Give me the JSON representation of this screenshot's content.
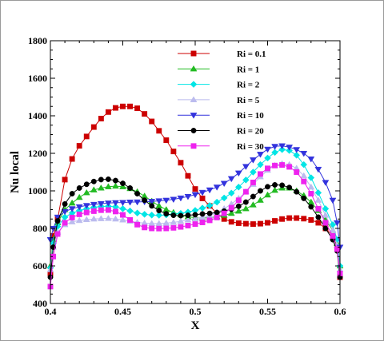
{
  "chart_data": {
    "type": "line",
    "title": "",
    "xlabel": "X",
    "ylabel": "Nu local",
    "xlim": [
      0.4,
      0.6
    ],
    "ylim": [
      400,
      1800
    ],
    "x_ticks": [
      0.4,
      0.45,
      0.5,
      0.55,
      0.6
    ],
    "x_tick_labels": [
      "0.4",
      "0.45",
      "0.5",
      "0.55",
      "0.6"
    ],
    "y_ticks": [
      400,
      600,
      800,
      1000,
      1200,
      1400,
      1600,
      1800
    ],
    "y_tick_labels": [
      "400",
      "600",
      "800",
      "1000",
      "1200",
      "1400",
      "1600",
      "1800"
    ],
    "grid": false,
    "legend_position": "top-right",
    "series": [
      {
        "name": "Ri = 0.1",
        "color": "#cc0000",
        "marker": "square",
        "points": [
          [
            0.4,
            560
          ],
          [
            0.402,
            760
          ],
          [
            0.405,
            850
          ],
          [
            0.41,
            1060
          ],
          [
            0.415,
            1170
          ],
          [
            0.42,
            1240
          ],
          [
            0.425,
            1290
          ],
          [
            0.43,
            1340
          ],
          [
            0.435,
            1385
          ],
          [
            0.44,
            1420
          ],
          [
            0.445,
            1442
          ],
          [
            0.45,
            1450
          ],
          [
            0.455,
            1450
          ],
          [
            0.46,
            1440
          ],
          [
            0.465,
            1410
          ],
          [
            0.47,
            1370
          ],
          [
            0.475,
            1320
          ],
          [
            0.48,
            1270
          ],
          [
            0.485,
            1210
          ],
          [
            0.49,
            1150
          ],
          [
            0.495,
            1080
          ],
          [
            0.5,
            1010
          ],
          [
            0.505,
            960
          ],
          [
            0.51,
            920
          ],
          [
            0.515,
            880
          ],
          [
            0.52,
            850
          ],
          [
            0.525,
            835
          ],
          [
            0.53,
            828
          ],
          [
            0.535,
            825
          ],
          [
            0.54,
            823
          ],
          [
            0.545,
            825
          ],
          [
            0.55,
            830
          ],
          [
            0.555,
            840
          ],
          [
            0.56,
            850
          ],
          [
            0.565,
            855
          ],
          [
            0.57,
            855
          ],
          [
            0.575,
            852
          ],
          [
            0.58,
            845
          ],
          [
            0.585,
            830
          ],
          [
            0.59,
            800
          ],
          [
            0.595,
            760
          ],
          [
            0.598,
            700
          ],
          [
            0.6,
            540
          ]
        ]
      },
      {
        "name": "Ri = 1",
        "color": "#22bb22",
        "marker": "triangle-up",
        "points": [
          [
            0.4,
            600
          ],
          [
            0.402,
            740
          ],
          [
            0.405,
            830
          ],
          [
            0.41,
            900
          ],
          [
            0.415,
            935
          ],
          [
            0.42,
            965
          ],
          [
            0.425,
            990
          ],
          [
            0.43,
            1005
          ],
          [
            0.435,
            1015
          ],
          [
            0.44,
            1022
          ],
          [
            0.445,
            1025
          ],
          [
            0.45,
            1022
          ],
          [
            0.455,
            1012
          ],
          [
            0.46,
            995
          ],
          [
            0.465,
            972
          ],
          [
            0.47,
            945
          ],
          [
            0.475,
            920
          ],
          [
            0.48,
            900
          ],
          [
            0.485,
            885
          ],
          [
            0.49,
            872
          ],
          [
            0.495,
            862
          ],
          [
            0.5,
            857
          ],
          [
            0.505,
            855
          ],
          [
            0.51,
            857
          ],
          [
            0.515,
            862
          ],
          [
            0.52,
            870
          ],
          [
            0.525,
            880
          ],
          [
            0.53,
            892
          ],
          [
            0.535,
            905
          ],
          [
            0.54,
            925
          ],
          [
            0.545,
            950
          ],
          [
            0.55,
            978
          ],
          [
            0.555,
            1003
          ],
          [
            0.56,
            1015
          ],
          [
            0.565,
            1015
          ],
          [
            0.57,
            1000
          ],
          [
            0.575,
            975
          ],
          [
            0.58,
            940
          ],
          [
            0.585,
            895
          ],
          [
            0.59,
            845
          ],
          [
            0.595,
            790
          ],
          [
            0.598,
            720
          ],
          [
            0.6,
            600
          ]
        ]
      },
      {
        "name": "Ri = 2",
        "color": "#00e5e5",
        "marker": "diamond",
        "points": [
          [
            0.4,
            590
          ],
          [
            0.402,
            720
          ],
          [
            0.405,
            810
          ],
          [
            0.41,
            860
          ],
          [
            0.415,
            882
          ],
          [
            0.42,
            895
          ],
          [
            0.425,
            905
          ],
          [
            0.43,
            912
          ],
          [
            0.435,
            917
          ],
          [
            0.44,
            918
          ],
          [
            0.445,
            915
          ],
          [
            0.45,
            905
          ],
          [
            0.455,
            893
          ],
          [
            0.46,
            882
          ],
          [
            0.465,
            875
          ],
          [
            0.47,
            871
          ],
          [
            0.475,
            870
          ],
          [
            0.48,
            872
          ],
          [
            0.485,
            875
          ],
          [
            0.49,
            880
          ],
          [
            0.495,
            887
          ],
          [
            0.5,
            896
          ],
          [
            0.505,
            908
          ],
          [
            0.51,
            922
          ],
          [
            0.515,
            940
          ],
          [
            0.52,
            962
          ],
          [
            0.525,
            988
          ],
          [
            0.53,
            1020
          ],
          [
            0.535,
            1058
          ],
          [
            0.54,
            1100
          ],
          [
            0.545,
            1140
          ],
          [
            0.55,
            1175
          ],
          [
            0.555,
            1205
          ],
          [
            0.56,
            1220
          ],
          [
            0.565,
            1215
          ],
          [
            0.57,
            1190
          ],
          [
            0.575,
            1140
          ],
          [
            0.58,
            1070
          ],
          [
            0.585,
            990
          ],
          [
            0.59,
            905
          ],
          [
            0.595,
            820
          ],
          [
            0.598,
            740
          ],
          [
            0.6,
            600
          ]
        ]
      },
      {
        "name": "Ri = 5",
        "color": "#bbbbee",
        "marker": "triangle-up",
        "points": [
          [
            0.4,
            580
          ],
          [
            0.402,
            700
          ],
          [
            0.405,
            780
          ],
          [
            0.41,
            820
          ],
          [
            0.415,
            835
          ],
          [
            0.42,
            842
          ],
          [
            0.425,
            847
          ],
          [
            0.43,
            850
          ],
          [
            0.435,
            852
          ],
          [
            0.44,
            853
          ],
          [
            0.445,
            850
          ],
          [
            0.45,
            845
          ],
          [
            0.455,
            838
          ],
          [
            0.46,
            832
          ],
          [
            0.465,
            828
          ],
          [
            0.47,
            826
          ],
          [
            0.475,
            826
          ],
          [
            0.48,
            828
          ],
          [
            0.485,
            832
          ],
          [
            0.49,
            838
          ],
          [
            0.495,
            845
          ],
          [
            0.5,
            852
          ],
          [
            0.505,
            860
          ],
          [
            0.51,
            870
          ],
          [
            0.515,
            885
          ],
          [
            0.52,
            905
          ],
          [
            0.525,
            930
          ],
          [
            0.53,
            960
          ],
          [
            0.535,
            995
          ],
          [
            0.54,
            1035
          ],
          [
            0.545,
            1075
          ],
          [
            0.55,
            1110
          ],
          [
            0.555,
            1135
          ],
          [
            0.56,
            1145
          ],
          [
            0.565,
            1140
          ],
          [
            0.57,
            1120
          ],
          [
            0.575,
            1080
          ],
          [
            0.58,
            1020
          ],
          [
            0.585,
            950
          ],
          [
            0.59,
            870
          ],
          [
            0.595,
            790
          ],
          [
            0.598,
            710
          ],
          [
            0.6,
            580
          ]
        ]
      },
      {
        "name": "Ri = 10",
        "color": "#3333dd",
        "marker": "triangle-down",
        "points": [
          [
            0.4,
            740
          ],
          [
            0.402,
            800
          ],
          [
            0.405,
            860
          ],
          [
            0.41,
            890
          ],
          [
            0.415,
            905
          ],
          [
            0.42,
            915
          ],
          [
            0.425,
            922
          ],
          [
            0.43,
            928
          ],
          [
            0.435,
            932
          ],
          [
            0.44,
            935
          ],
          [
            0.445,
            937
          ],
          [
            0.45,
            938
          ],
          [
            0.455,
            940
          ],
          [
            0.46,
            941
          ],
          [
            0.465,
            942
          ],
          [
            0.47,
            944
          ],
          [
            0.475,
            947
          ],
          [
            0.48,
            950
          ],
          [
            0.485,
            955
          ],
          [
            0.49,
            962
          ],
          [
            0.495,
            970
          ],
          [
            0.5,
            980
          ],
          [
            0.505,
            992
          ],
          [
            0.51,
            1005
          ],
          [
            0.515,
            1020
          ],
          [
            0.52,
            1040
          ],
          [
            0.525,
            1065
          ],
          [
            0.53,
            1095
          ],
          [
            0.535,
            1130
          ],
          [
            0.54,
            1165
          ],
          [
            0.545,
            1195
          ],
          [
            0.55,
            1222
          ],
          [
            0.555,
            1237
          ],
          [
            0.56,
            1240
          ],
          [
            0.565,
            1233
          ],
          [
            0.57,
            1220
          ],
          [
            0.575,
            1200
          ],
          [
            0.58,
            1170
          ],
          [
            0.585,
            1115
          ],
          [
            0.59,
            1045
          ],
          [
            0.595,
            950
          ],
          [
            0.598,
            830
          ],
          [
            0.6,
            700
          ]
        ]
      },
      {
        "name": "Ri = 20",
        "color": "#000000",
        "marker": "circle",
        "points": [
          [
            0.4,
            540
          ],
          [
            0.402,
            700
          ],
          [
            0.405,
            840
          ],
          [
            0.41,
            930
          ],
          [
            0.415,
            985
          ],
          [
            0.42,
            1015
          ],
          [
            0.425,
            1035
          ],
          [
            0.43,
            1050
          ],
          [
            0.435,
            1060
          ],
          [
            0.44,
            1062
          ],
          [
            0.445,
            1055
          ],
          [
            0.45,
            1040
          ],
          [
            0.455,
            1015
          ],
          [
            0.46,
            985
          ],
          [
            0.465,
            950
          ],
          [
            0.47,
            920
          ],
          [
            0.475,
            895
          ],
          [
            0.48,
            878
          ],
          [
            0.485,
            870
          ],
          [
            0.49,
            868
          ],
          [
            0.495,
            870
          ],
          [
            0.5,
            873
          ],
          [
            0.505,
            877
          ],
          [
            0.51,
            880
          ],
          [
            0.515,
            885
          ],
          [
            0.52,
            892
          ],
          [
            0.525,
            902
          ],
          [
            0.53,
            918
          ],
          [
            0.535,
            940
          ],
          [
            0.54,
            970
          ],
          [
            0.545,
            1000
          ],
          [
            0.55,
            1022
          ],
          [
            0.555,
            1032
          ],
          [
            0.56,
            1030
          ],
          [
            0.565,
            1018
          ],
          [
            0.57,
            995
          ],
          [
            0.575,
            960
          ],
          [
            0.58,
            915
          ],
          [
            0.585,
            860
          ],
          [
            0.59,
            800
          ],
          [
            0.595,
            740
          ],
          [
            0.598,
            680
          ],
          [
            0.6,
            540
          ]
        ]
      },
      {
        "name": "Ri = 30",
        "color": "#ee22ee",
        "marker": "square",
        "points": [
          [
            0.4,
            490
          ],
          [
            0.402,
            650
          ],
          [
            0.405,
            770
          ],
          [
            0.41,
            830
          ],
          [
            0.415,
            858
          ],
          [
            0.42,
            875
          ],
          [
            0.425,
            885
          ],
          [
            0.43,
            892
          ],
          [
            0.435,
            897
          ],
          [
            0.44,
            898
          ],
          [
            0.445,
            890
          ],
          [
            0.45,
            872
          ],
          [
            0.455,
            845
          ],
          [
            0.46,
            820
          ],
          [
            0.465,
            805
          ],
          [
            0.47,
            800
          ],
          [
            0.475,
            799
          ],
          [
            0.48,
            800
          ],
          [
            0.485,
            803
          ],
          [
            0.49,
            808
          ],
          [
            0.495,
            815
          ],
          [
            0.5,
            823
          ],
          [
            0.505,
            832
          ],
          [
            0.51,
            843
          ],
          [
            0.515,
            858
          ],
          [
            0.52,
            880
          ],
          [
            0.525,
            910
          ],
          [
            0.53,
            950
          ],
          [
            0.535,
            995
          ],
          [
            0.54,
            1045
          ],
          [
            0.545,
            1090
          ],
          [
            0.55,
            1120
          ],
          [
            0.555,
            1135
          ],
          [
            0.56,
            1138
          ],
          [
            0.565,
            1128
          ],
          [
            0.57,
            1100
          ],
          [
            0.575,
            1050
          ],
          [
            0.58,
            985
          ],
          [
            0.585,
            905
          ],
          [
            0.59,
            830
          ],
          [
            0.595,
            760
          ],
          [
            0.598,
            690
          ],
          [
            0.6,
            560
          ]
        ]
      }
    ]
  }
}
